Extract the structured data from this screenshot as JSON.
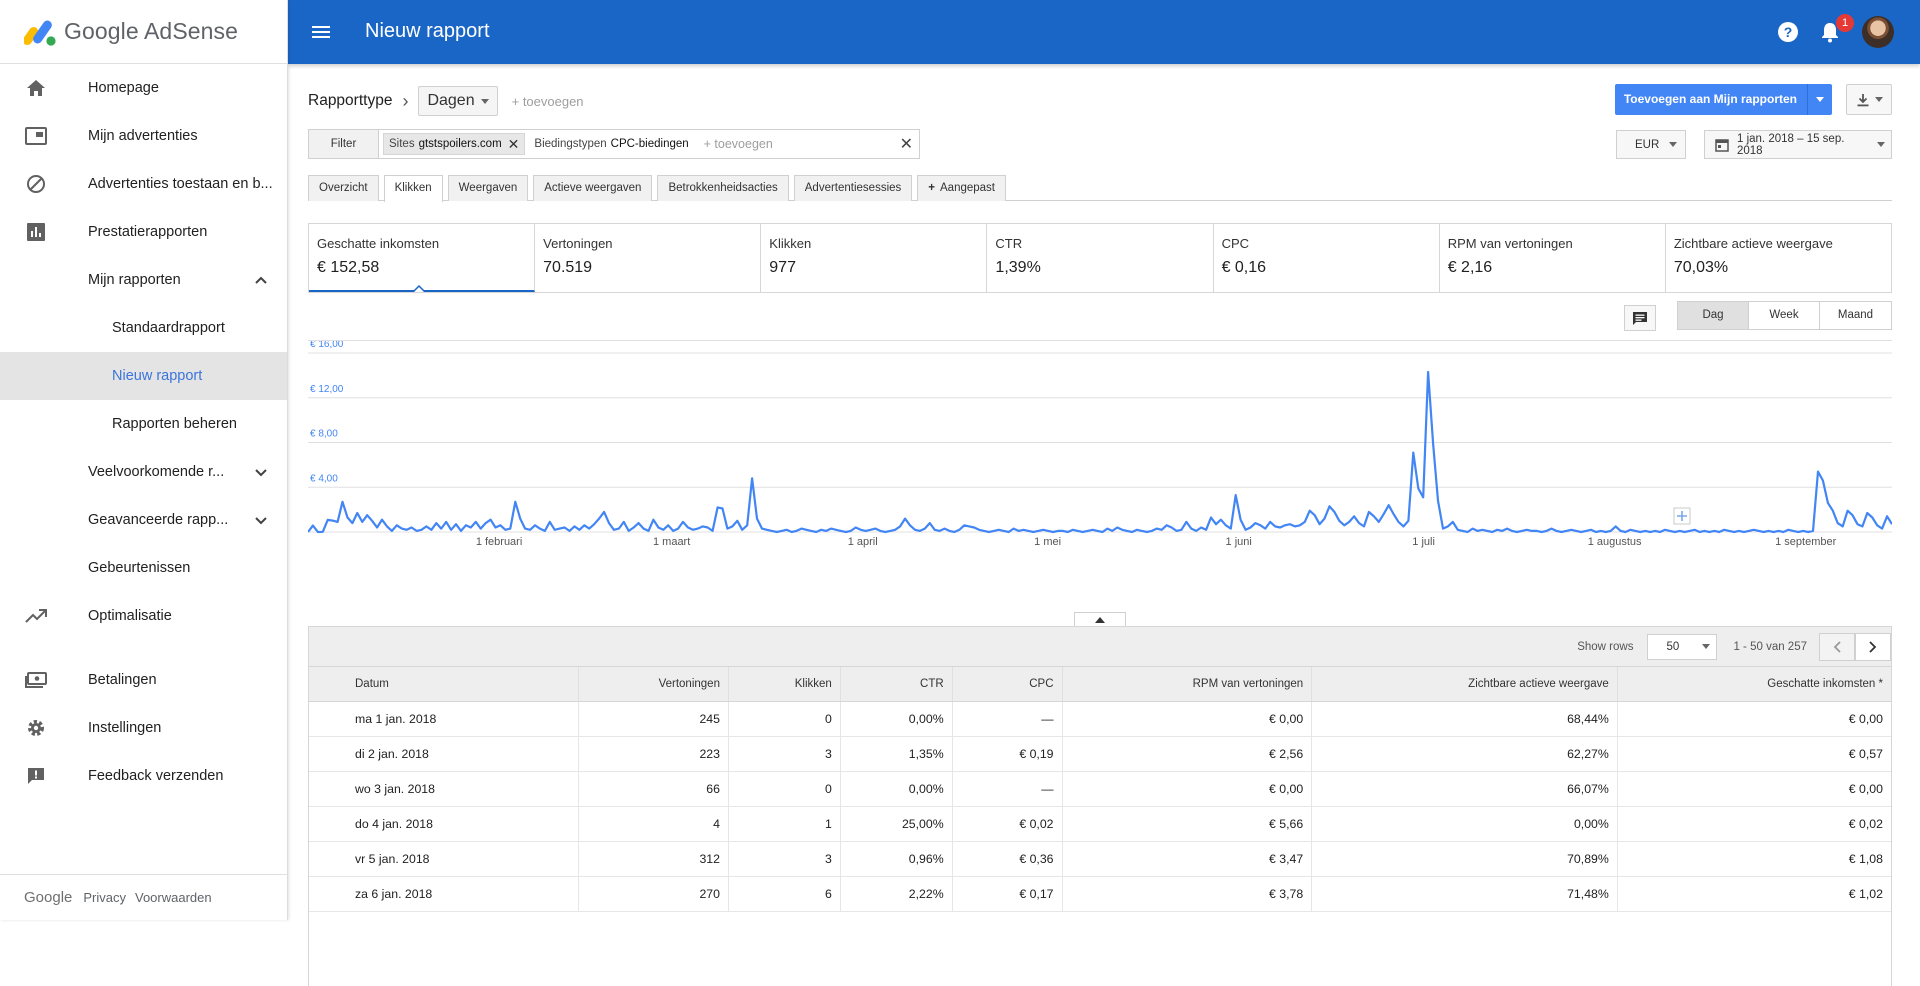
{
  "brand": {
    "name": "Google AdSense"
  },
  "topbar": {
    "title": "Nieuw rapport",
    "notification_count": "1"
  },
  "sidebar": {
    "items": [
      {
        "label": "Homepage",
        "icon": "home-icon"
      },
      {
        "label": "Mijn advertenties",
        "icon": "ad-units-icon"
      },
      {
        "label": "Advertenties toestaan en b...",
        "icon": "block-icon"
      },
      {
        "label": "Prestatierapporten",
        "icon": "bar-chart-icon"
      },
      {
        "label": "Mijn rapporten",
        "expanded": true
      },
      {
        "label": "Standaardrapport"
      },
      {
        "label": "Nieuw rapport",
        "active": true
      },
      {
        "label": "Rapporten beheren"
      },
      {
        "label": "Veelvoorkomende r...",
        "expanded": false
      },
      {
        "label": "Geavanceerde rapp...",
        "expanded": false
      },
      {
        "label": "Gebeurtenissen"
      },
      {
        "label": "Optimalisatie",
        "icon": "trending-up-icon"
      },
      {
        "label": "Betalingen",
        "icon": "payments-icon"
      },
      {
        "label": "Instellingen",
        "icon": "gear-icon"
      },
      {
        "label": "Feedback verzenden",
        "icon": "feedback-icon"
      }
    ],
    "footer": {
      "google": "Google",
      "privacy": "Privacy",
      "terms": "Voorwaarden"
    }
  },
  "report": {
    "type_label": "Rapporttype",
    "dimension": "Dagen",
    "add_dimension": "+ toevoegen",
    "add_to_reports": "Toevoegen aan Mijn rapporten",
    "currency": "EUR",
    "date_range": "1 jan. 2018 – 15 sep. 2018"
  },
  "filters": {
    "button": "Filter",
    "chips": [
      {
        "key": "Sites",
        "value": "gtstspoilers.com",
        "removable": true
      },
      {
        "key": "Biedingstypen",
        "value": "CPC-biedingen",
        "removable": false
      }
    ],
    "add_placeholder": "+ toevoegen"
  },
  "tabs": [
    "Overzicht",
    "Klikken",
    "Weergaven",
    "Actieve weergaven",
    "Betrokkenheidsacties",
    "Advertentiesessies",
    "Aangepast"
  ],
  "active_tab": "Klikken",
  "metrics": [
    {
      "label": "Geschatte inkomsten",
      "value": "€ 152,58",
      "active": true
    },
    {
      "label": "Vertoningen",
      "value": "70.519"
    },
    {
      "label": "Klikken",
      "value": "977"
    },
    {
      "label": "CTR",
      "value": "1,39%"
    },
    {
      "label": "CPC",
      "value": "€ 0,16"
    },
    {
      "label": "RPM van vertoningen",
      "value": "€ 2,16"
    },
    {
      "label": "Zichtbare actieve weergave",
      "value": "70,03%"
    }
  ],
  "period_toggle": {
    "options": [
      "Dag",
      "Week",
      "Maand"
    ],
    "selected": "Dag"
  },
  "chart_data": {
    "type": "line",
    "title": "",
    "xlabel": "",
    "ylabel": "",
    "x_start": "2018-01-01",
    "x_end": "2018-09-15",
    "x_ticks": [
      "1 februari",
      "1 maart",
      "1 april",
      "1 mei",
      "1 juni",
      "1 juli",
      "1 augustus",
      "1 september"
    ],
    "y_ticks": [
      "€ 4,00",
      "€ 8,00",
      "€ 12,00",
      "€ 16,00"
    ],
    "ylim": [
      0,
      16
    ],
    "color": "#4285f4",
    "grid": true,
    "series": [
      {
        "name": "",
        "values": [
          0.0,
          0.57,
          0.0,
          0.02,
          1.08,
          1.02,
          0.9,
          2.7,
          1.3,
          0.8,
          1.7,
          0.9,
          1.5,
          1.0,
          0.4,
          1.1,
          0.5,
          0.1,
          0.6,
          0.3,
          0.2,
          0.4,
          0.1,
          0.2,
          0.5,
          0.2,
          0.8,
          0.3,
          0.9,
          0.2,
          0.7,
          0.1,
          0.6,
          0.4,
          0.9,
          0.3,
          0.8,
          1.1,
          0.4,
          0.6,
          0.2,
          0.3,
          2.7,
          1.2,
          0.3,
          0.2,
          0.6,
          0.3,
          0.1,
          0.9,
          0.2,
          0.3,
          0.4,
          0.1,
          0.5,
          0.2,
          0.6,
          0.3,
          0.7,
          1.2,
          1.8,
          0.8,
          0.2,
          0.3,
          0.9,
          0.1,
          0.4,
          0.8,
          0.3,
          0.1,
          1.1,
          0.4,
          0.2,
          0.6,
          0.1,
          0.3,
          0.9,
          0.4,
          0.2,
          0.3,
          0.5,
          0.4,
          0.1,
          2.2,
          2.1,
          0.3,
          0.5,
          1.0,
          0.2,
          0.6,
          4.8,
          1.2,
          0.3,
          0.2,
          0.1,
          0.0,
          0.1,
          0.2,
          0.0,
          0.1,
          0.3,
          0.2,
          0.1,
          0.0,
          0.2,
          0.1,
          0.3,
          0.2,
          0.1,
          0.0,
          0.1,
          0.4,
          0.2,
          0.1,
          0.2,
          0.3,
          0.1,
          0.0,
          0.1,
          0.2,
          0.5,
          1.2,
          0.6,
          0.2,
          0.1,
          0.3,
          0.8,
          0.2,
          0.1,
          0.3,
          0.1,
          0.0,
          0.2,
          0.6,
          0.5,
          0.4,
          0.2,
          0.1,
          0.0,
          0.1,
          0.2,
          0.1,
          0.0,
          0.3,
          0.1,
          0.2,
          0.1,
          0.0,
          0.1,
          0.2,
          0.1,
          0.0,
          0.1,
          0.1,
          0.0,
          0.2,
          0.1,
          0.0,
          0.1,
          0.2,
          0.1,
          0.0,
          0.3,
          0.1,
          0.4,
          0.2,
          0.1,
          0.0,
          0.2,
          0.1,
          0.0,
          0.1,
          0.3,
          0.2,
          0.6,
          0.4,
          0.1,
          0.2,
          0.9,
          0.3,
          0.1,
          0.4,
          0.2,
          1.3,
          0.7,
          1.1,
          0.6,
          0.3,
          3.3,
          1.1,
          0.2,
          0.4,
          0.8,
          0.6,
          0.3,
          0.9,
          0.5,
          0.4,
          0.6,
          0.7,
          0.5,
          0.6,
          0.9,
          1.9,
          1.5,
          0.7,
          1.2,
          2.3,
          1.8,
          1.0,
          0.6,
          0.9,
          1.4,
          0.8,
          0.5,
          1.8,
          1.4,
          0.9,
          1.6,
          2.4,
          1.6,
          0.9,
          0.5,
          1.0,
          7.1,
          3.9,
          3.1,
          14.3,
          7.9,
          2.8,
          0.3,
          0.5,
          0.9,
          0.2,
          0.1,
          0.0,
          0.3,
          0.1,
          0.2,
          0.1,
          0.0,
          0.2,
          0.1,
          0.3,
          0.1,
          0.0,
          0.1,
          0.2,
          0.1,
          0.1,
          0.0,
          0.1,
          0.3,
          0.1,
          0.0,
          0.1,
          0.2,
          0.1,
          0.0,
          0.1,
          0.2,
          0.0,
          0.1,
          0.0,
          0.1,
          0.5,
          0.1,
          0.0,
          0.2,
          0.1,
          0.0,
          0.1,
          0.0,
          0.1,
          0.0,
          0.2,
          0.1,
          0.0,
          0.1,
          0.0,
          0.1,
          0.2,
          0.0,
          0.1,
          0.0,
          0.1,
          0.0,
          0.2,
          0.1,
          0.0,
          0.1,
          0.0,
          0.1,
          0.2,
          0.1,
          0.0,
          0.1,
          0.0,
          0.1,
          0.0,
          0.2,
          0.1,
          0.0,
          0.1,
          0.0,
          0.1,
          5.4,
          4.6,
          2.6,
          1.9,
          0.8,
          0.5,
          1.9,
          1.5,
          0.7,
          0.5,
          1.7,
          1.3,
          0.6,
          0.3,
          1.4,
          0.7
        ]
      }
    ]
  },
  "table": {
    "show_rows_label": "Show rows",
    "rows_per_page": "50",
    "page_info": "1 - 50 van 257",
    "columns": [
      "Datum",
      "Vertoningen",
      "Klikken",
      "CTR",
      "CPC",
      "RPM van vertoningen",
      "Zichtbare actieve weergave",
      "Geschatte inkomsten *"
    ],
    "rows": [
      [
        "ma 1 jan. 2018",
        "245",
        "0",
        "0,00%",
        "—",
        "€ 0,00",
        "68,44%",
        "€ 0,00"
      ],
      [
        "di 2 jan. 2018",
        "223",
        "3",
        "1,35%",
        "€ 0,19",
        "€ 2,56",
        "62,27%",
        "€ 0,57"
      ],
      [
        "wo 3 jan. 2018",
        "66",
        "0",
        "0,00%",
        "—",
        "€ 0,00",
        "66,07%",
        "€ 0,00"
      ],
      [
        "do 4 jan. 2018",
        "4",
        "1",
        "25,00%",
        "€ 0,02",
        "€ 5,66",
        "0,00%",
        "€ 0,02"
      ],
      [
        "vr 5 jan. 2018",
        "312",
        "3",
        "0,96%",
        "€ 0,36",
        "€ 3,47",
        "70,89%",
        "€ 1,08"
      ],
      [
        "za 6 jan. 2018",
        "270",
        "6",
        "2,22%",
        "€ 0,17",
        "€ 3,78",
        "71,48%",
        "€ 1,02"
      ]
    ]
  }
}
